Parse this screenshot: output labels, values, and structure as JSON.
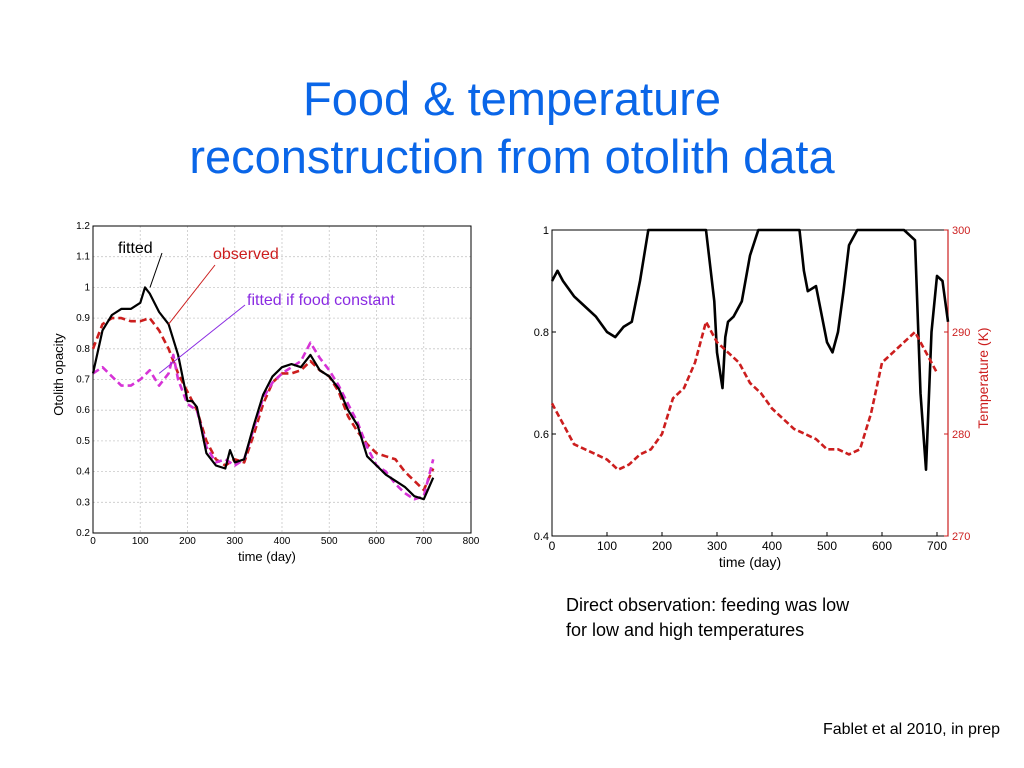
{
  "slide": {
    "title_line1": "Food & temperature",
    "title_line2": "reconstruction from otolith data",
    "caption_line1": "Direct observation: feeding was low",
    "caption_line2": "for low and high temperatures",
    "credit": "Fablet et al 2010, in prep"
  },
  "colors": {
    "title": "#0a66e8",
    "fitted": "#000000",
    "observed": "#cc1e1e",
    "food_constant": "#d633d6",
    "temperature": "#cc1e1e",
    "annotation_observed": "#cc1e1e",
    "annotation_food_constant": "#8a2be2"
  },
  "chart_data": [
    {
      "type": "line",
      "xlabel": "time (day)",
      "ylabel": "Otolith opacity",
      "xlim": [
        0,
        800
      ],
      "ylim": [
        0.2,
        1.2
      ],
      "xticks": [
        "0",
        "100",
        "200",
        "300",
        "400",
        "500",
        "600",
        "700",
        "800"
      ],
      "yticks": [
        "0.2",
        "0.3",
        "0.4",
        "0.5",
        "0.6",
        "0.7",
        "0.8",
        "0.9",
        "1",
        "1.1",
        "1.2"
      ],
      "grid": true,
      "annotations": [
        {
          "text": "fitted",
          "target": "fitted"
        },
        {
          "text": "observed",
          "target": "observed"
        },
        {
          "text": "fitted if food constant",
          "target": "food_constant"
        }
      ],
      "series": [
        {
          "key": "fitted",
          "style": "solid",
          "x": [
            0,
            20,
            40,
            60,
            80,
            100,
            110,
            120,
            140,
            160,
            180,
            200,
            210,
            220,
            240,
            260,
            280,
            290,
            300,
            320,
            340,
            360,
            380,
            400,
            420,
            440,
            460,
            480,
            500,
            520,
            540,
            560,
            580,
            600,
            620,
            640,
            660,
            680,
            700,
            720
          ],
          "y": [
            0.72,
            0.86,
            0.91,
            0.93,
            0.93,
            0.95,
            1.0,
            0.98,
            0.92,
            0.88,
            0.78,
            0.63,
            0.63,
            0.61,
            0.46,
            0.42,
            0.41,
            0.47,
            0.43,
            0.44,
            0.55,
            0.65,
            0.71,
            0.74,
            0.75,
            0.74,
            0.78,
            0.73,
            0.71,
            0.67,
            0.6,
            0.55,
            0.45,
            0.42,
            0.39,
            0.37,
            0.35,
            0.32,
            0.31,
            0.38
          ]
        },
        {
          "key": "observed",
          "style": "dashed",
          "x": [
            0,
            20,
            40,
            60,
            80,
            100,
            120,
            140,
            160,
            180,
            200,
            220,
            240,
            260,
            280,
            300,
            320,
            340,
            360,
            380,
            400,
            420,
            440,
            460,
            480,
            500,
            520,
            540,
            560,
            580,
            600,
            620,
            640,
            660,
            680,
            700,
            720
          ],
          "y": [
            0.8,
            0.88,
            0.9,
            0.9,
            0.89,
            0.89,
            0.9,
            0.86,
            0.8,
            0.72,
            0.66,
            0.6,
            0.5,
            0.44,
            0.42,
            0.44,
            0.43,
            0.52,
            0.62,
            0.69,
            0.72,
            0.72,
            0.73,
            0.76,
            0.73,
            0.71,
            0.66,
            0.58,
            0.53,
            0.49,
            0.46,
            0.45,
            0.44,
            0.4,
            0.37,
            0.34,
            0.41
          ]
        },
        {
          "key": "food_constant",
          "style": "dashed",
          "x": [
            0,
            20,
            40,
            60,
            80,
            100,
            120,
            140,
            160,
            170,
            180,
            200,
            220,
            240,
            260,
            280,
            300,
            320,
            340,
            360,
            380,
            400,
            420,
            440,
            460,
            480,
            500,
            520,
            540,
            560,
            580,
            600,
            620,
            640,
            660,
            680,
            700,
            720
          ],
          "y": [
            0.72,
            0.74,
            0.71,
            0.68,
            0.68,
            0.7,
            0.73,
            0.68,
            0.72,
            0.78,
            0.7,
            0.62,
            0.6,
            0.48,
            0.43,
            0.44,
            0.42,
            0.44,
            0.54,
            0.64,
            0.69,
            0.72,
            0.74,
            0.76,
            0.82,
            0.77,
            0.73,
            0.68,
            0.62,
            0.56,
            0.48,
            0.42,
            0.4,
            0.36,
            0.33,
            0.31,
            0.32,
            0.44
          ]
        }
      ]
    },
    {
      "type": "line",
      "xlabel": "time (day)",
      "ylabel_right": "Temperature (K)",
      "xlim": [
        0,
        720
      ],
      "ylim": [
        0.4,
        1
      ],
      "ylim_right": [
        270,
        300
      ],
      "xticks": [
        "0",
        "100",
        "200",
        "300",
        "400",
        "500",
        "600",
        "700"
      ],
      "yticks": [
        "0.4",
        "0.6",
        "0.8",
        "1"
      ],
      "yticks_right": [
        "270",
        "280",
        "290",
        "300"
      ],
      "grid": false,
      "series": [
        {
          "key": "fitted",
          "style": "solid",
          "axis": "left",
          "x": [
            0,
            10,
            20,
            40,
            60,
            80,
            100,
            115,
            130,
            145,
            160,
            175,
            200,
            230,
            260,
            280,
            295,
            300,
            310,
            315,
            320,
            330,
            345,
            360,
            375,
            400,
            430,
            450,
            458,
            465,
            480,
            500,
            510,
            520,
            530,
            540,
            555,
            575,
            600,
            620,
            640,
            660,
            670,
            680,
            690,
            700,
            710,
            720
          ],
          "y": [
            0.9,
            0.92,
            0.9,
            0.87,
            0.85,
            0.83,
            0.8,
            0.79,
            0.81,
            0.82,
            0.9,
            1.0,
            1.0,
            1.0,
            1.0,
            1.0,
            0.86,
            0.76,
            0.69,
            0.79,
            0.82,
            0.83,
            0.86,
            0.95,
            1.0,
            1.0,
            1.0,
            1.0,
            0.92,
            0.88,
            0.89,
            0.78,
            0.76,
            0.8,
            0.88,
            0.97,
            1.0,
            1.0,
            1.0,
            1.0,
            1.0,
            0.98,
            0.68,
            0.53,
            0.8,
            0.91,
            0.9,
            0.82
          ]
        },
        {
          "key": "temperature",
          "style": "dashed",
          "axis": "right",
          "x": [
            0,
            20,
            40,
            60,
            80,
            100,
            120,
            140,
            160,
            180,
            200,
            220,
            240,
            260,
            280,
            300,
            320,
            340,
            360,
            380,
            400,
            420,
            440,
            460,
            480,
            500,
            520,
            540,
            560,
            580,
            600,
            620,
            640,
            660,
            680,
            700
          ],
          "y": [
            283,
            281,
            279,
            278.5,
            278,
            277.5,
            276.5,
            277,
            278,
            278.5,
            280,
            283.5,
            284.5,
            287,
            291,
            289,
            288,
            287,
            285,
            284,
            282.5,
            281.5,
            280.5,
            280,
            279.5,
            278.5,
            278.5,
            278,
            278.5,
            282,
            287,
            288,
            289,
            290,
            288,
            286
          ]
        }
      ]
    }
  ]
}
